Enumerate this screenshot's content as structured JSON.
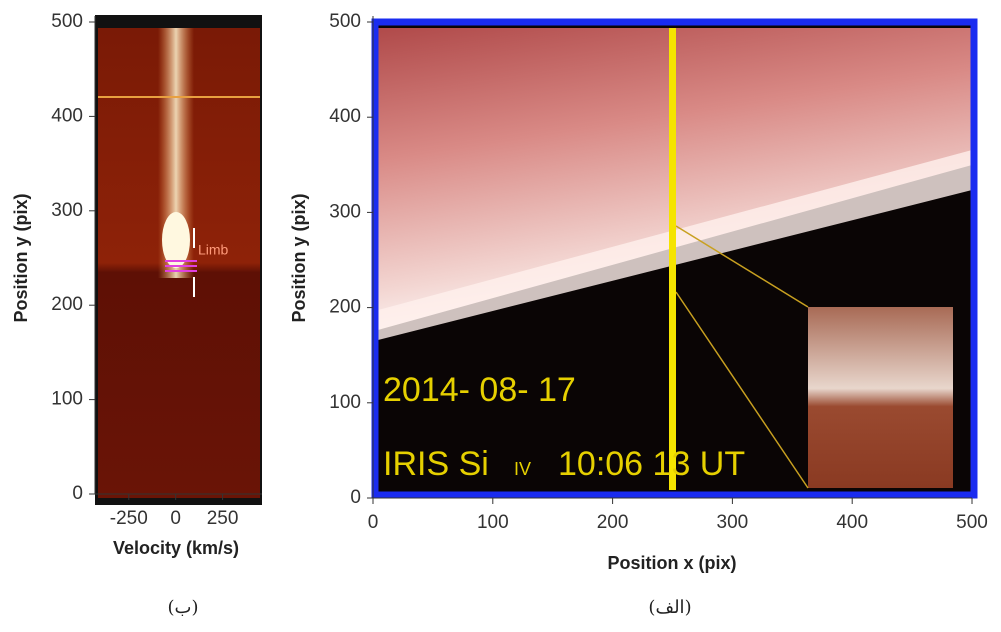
{
  "panels": [
    {
      "caption": "(ب)",
      "xlabel": "Velocity (km/s)",
      "ylabel": "Position y (pix)",
      "xlim": [
        -430,
        460
      ],
      "xticks": [
        -250,
        0,
        250
      ],
      "ylim": [
        0,
        500
      ],
      "yticks": [
        0,
        100,
        200,
        300,
        400,
        500
      ],
      "annotations": [
        "Limb"
      ]
    },
    {
      "caption": "(الف)",
      "xlabel": "Position x (pix)",
      "ylabel": "Position y (pix)",
      "xlim": [
        0,
        500
      ],
      "xticks": [
        0,
        100,
        200,
        300,
        400,
        500
      ],
      "ylim": [
        0,
        500
      ],
      "yticks": [
        0,
        100,
        200,
        300,
        400,
        500
      ],
      "slit_x": 250,
      "annotations": [
        "2014- 08- 17",
        "IRIS  Si",
        "IV",
        "10:06 13 UT"
      ]
    }
  ]
}
